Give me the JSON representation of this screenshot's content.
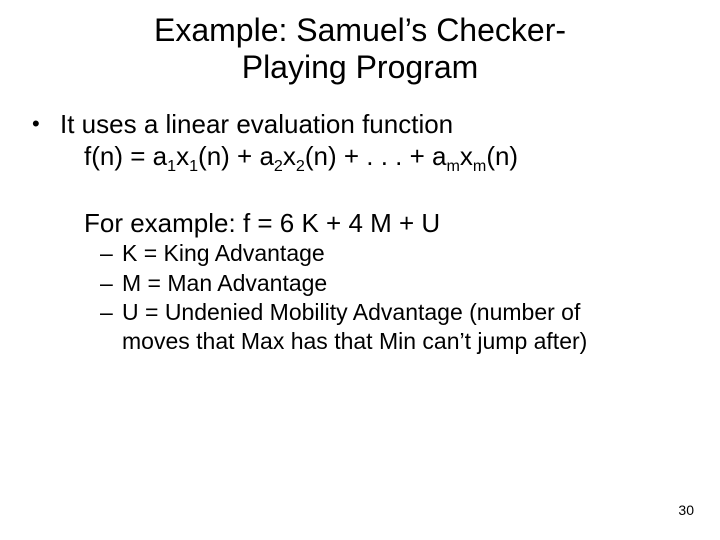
{
  "title_line1": "Example: Samuel’s Checker-",
  "title_line2": "Playing Program",
  "bullet1": "It uses a linear evaluation function",
  "formula_prefix": "f(n) = a",
  "formula_s1": "1",
  "formula_x1": "x",
  "formula_s1b": "1",
  "formula_p1": "(n) + a",
  "formula_s2": "2",
  "formula_x2": "x",
  "formula_s2b": "2",
  "formula_p2": "(n) + . . . + a",
  "formula_sm": "m",
  "formula_xm": "x",
  "formula_smb": "m",
  "formula_suffix": "(n)",
  "example_line": "For example:  f = 6 K + 4 M + U",
  "dash": "–",
  "sub1": "K = King Advantage",
  "sub2": "M = Man Advantage",
  "sub3a": "U = Undenied Mobility Advantage (number of",
  "sub3b": "moves that Max has that Min can’t jump after)",
  "pagenum": "30",
  "bullet_glyph": "•"
}
